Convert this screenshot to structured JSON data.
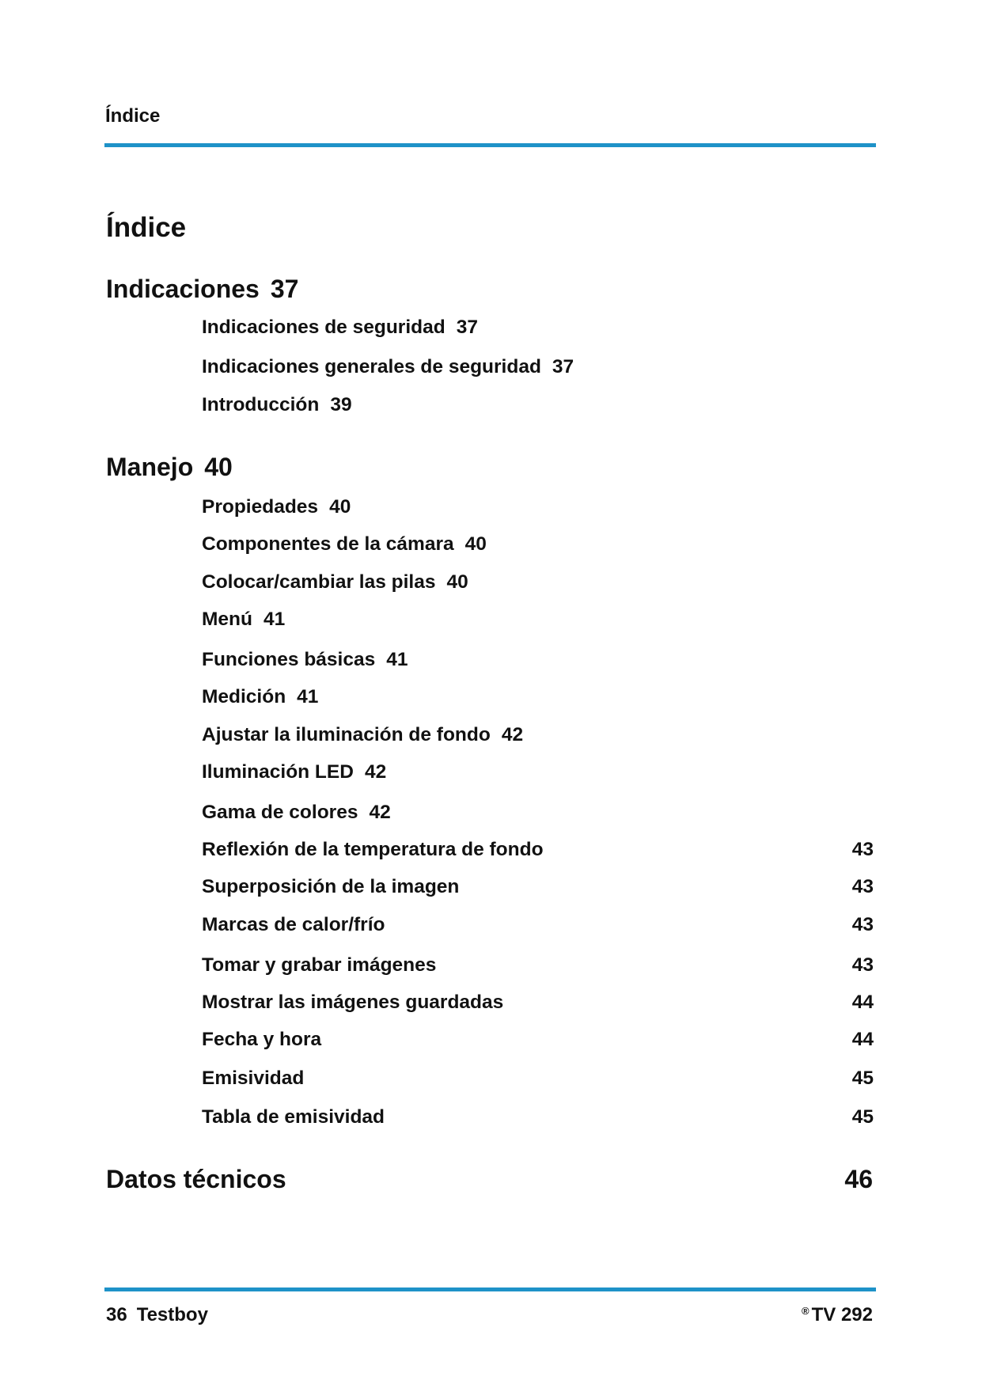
{
  "header": {
    "title": "Índice",
    "accent_color": "#1e92c8"
  },
  "page_title": "Índice",
  "sections": [
    {
      "title": "Indicaciones",
      "page": "37",
      "items": [
        {
          "label": "Indicaciones de seguridad",
          "page": "37"
        },
        {
          "label": "Indicaciones generales de seguridad",
          "page": "37"
        },
        {
          "label": "Introducción",
          "page": "39"
        }
      ]
    },
    {
      "title": "Manejo",
      "page": "40",
      "items": [
        {
          "label": "Propiedades",
          "page": "40"
        },
        {
          "label": "Componentes de la cámara",
          "page": "40"
        },
        {
          "label": "Colocar/cambiar las pilas",
          "page": "40"
        },
        {
          "label": "Menú",
          "page": "41"
        },
        {
          "label": "Funciones básicas",
          "page": "41"
        },
        {
          "label": "Medición",
          "page": "41"
        },
        {
          "label": "Ajustar la iluminación de fondo",
          "page": "42"
        },
        {
          "label": "Iluminación LED",
          "page": "42"
        },
        {
          "label": "Gama de colores",
          "page": "42"
        },
        {
          "label": "Reflexión de la temperatura de fondo",
          "page": "43"
        },
        {
          "label": "Superposición de la imagen",
          "page": "43"
        },
        {
          "label": "Marcas de calor/frío",
          "page": "43"
        },
        {
          "label": "Tomar y grabar imágenes",
          "page": "43"
        },
        {
          "label": "Mostrar las imágenes guardadas",
          "page": "44"
        },
        {
          "label": "Fecha y hora",
          "page": "44"
        },
        {
          "label": "Emisividad",
          "page": "45"
        },
        {
          "label": "Tabla de emisividad",
          "page": "45"
        }
      ]
    },
    {
      "title": "Datos técnicos",
      "page": "46",
      "items": []
    }
  ],
  "footer": {
    "page_number": "36",
    "brand": "Testboy",
    "registered_mark": "®",
    "model": "TV 292"
  }
}
